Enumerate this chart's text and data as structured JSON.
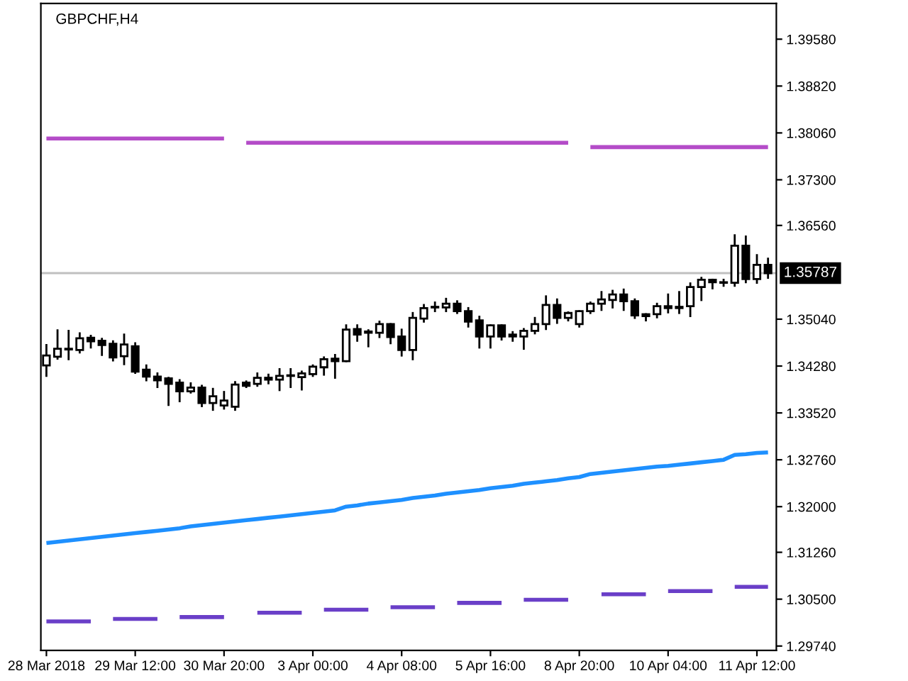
{
  "chart_data": {
    "type": "candlestick",
    "title": "GBPCHF,H4",
    "categories": [
      "28 Mar 2018",
      null,
      null,
      null,
      null,
      null,
      null,
      null,
      "29 Mar 12:00",
      null,
      null,
      null,
      null,
      null,
      null,
      null,
      "30 Mar 20:00",
      null,
      null,
      null,
      null,
      null,
      null,
      null,
      "3 Apr 00:00",
      null,
      null,
      null,
      null,
      null,
      null,
      null,
      "4 Apr 08:00",
      null,
      null,
      null,
      null,
      null,
      null,
      null,
      "5 Apr 16:00",
      null,
      null,
      null,
      null,
      null,
      null,
      null,
      "8 Apr 20:00",
      null,
      null,
      null,
      null,
      null,
      null,
      null,
      "10 Apr 04:00",
      null,
      null,
      null,
      null,
      null,
      null,
      null,
      "11 Apr 12:00",
      null
    ],
    "ohlc": [
      [
        1.3429,
        1.3462,
        1.3412,
        1.3445
      ],
      [
        1.3443,
        1.3486,
        1.344,
        1.3456
      ],
      [
        1.3455,
        1.3485,
        1.3439,
        1.3456
      ],
      [
        1.3454,
        1.3481,
        1.345,
        1.3473
      ],
      [
        1.3474,
        1.3477,
        1.3458,
        1.3468
      ],
      [
        1.3469,
        1.3472,
        1.3446,
        1.3462
      ],
      [
        1.3464,
        1.3468,
        1.3437,
        1.3442
      ],
      [
        1.3444,
        1.3479,
        1.3431,
        1.3463
      ],
      [
        1.346,
        1.3465,
        1.3417,
        1.3419
      ],
      [
        1.3422,
        1.3429,
        1.3405,
        1.3411
      ],
      [
        1.3411,
        1.3416,
        1.3394,
        1.3405
      ],
      [
        1.3408,
        1.3409,
        1.3365,
        1.3399
      ],
      [
        1.3401,
        1.3405,
        1.3371,
        1.3387
      ],
      [
        1.3387,
        1.34,
        1.3385,
        1.3393
      ],
      [
        1.3393,
        1.3396,
        1.3363,
        1.3368
      ],
      [
        1.3368,
        1.3391,
        1.3357,
        1.3379
      ],
      [
        1.3364,
        1.3386,
        1.3359,
        1.3372
      ],
      [
        1.3362,
        1.3402,
        1.3357,
        1.3398
      ],
      [
        1.3401,
        1.3403,
        1.3394,
        1.3396
      ],
      [
        1.3399,
        1.3416,
        1.3396,
        1.3409
      ],
      [
        1.3409,
        1.3414,
        1.34,
        1.3406
      ],
      [
        1.3406,
        1.3423,
        1.3389,
        1.3412
      ],
      [
        1.3412,
        1.3423,
        1.3394,
        1.3413
      ],
      [
        1.341,
        1.3419,
        1.339,
        1.3416
      ],
      [
        1.3415,
        1.3429,
        1.3412,
        1.3427
      ],
      [
        1.3426,
        1.3442,
        1.3414,
        1.3439
      ],
      [
        1.344,
        1.3446,
        1.3409,
        1.3436
      ],
      [
        1.3436,
        1.3494,
        1.3436,
        1.3487
      ],
      [
        1.3488,
        1.3494,
        1.3469,
        1.3479
      ],
      [
        1.3484,
        1.3486,
        1.346,
        1.3482
      ],
      [
        1.3482,
        1.35,
        1.3475,
        1.3496
      ],
      [
        1.3496,
        1.3496,
        1.3465,
        1.3475
      ],
      [
        1.3476,
        1.3487,
        1.3445,
        1.3454
      ],
      [
        1.3454,
        1.3514,
        1.3439,
        1.3506
      ],
      [
        1.3505,
        1.3527,
        1.35,
        1.3522
      ],
      [
        1.3523,
        1.3531,
        1.3517,
        1.3524
      ],
      [
        1.3523,
        1.3537,
        1.3517,
        1.3529
      ],
      [
        1.3529,
        1.3533,
        1.3514,
        1.3517
      ],
      [
        1.3517,
        1.3522,
        1.3492,
        1.35
      ],
      [
        1.3502,
        1.3508,
        1.3458,
        1.3476
      ],
      [
        1.3476,
        1.3494,
        1.3458,
        1.3494
      ],
      [
        1.3494,
        1.3494,
        1.3471,
        1.3476
      ],
      [
        1.3479,
        1.3483,
        1.3469,
        1.3476
      ],
      [
        1.3476,
        1.3488,
        1.3456,
        1.3485
      ],
      [
        1.3485,
        1.3506,
        1.3481,
        1.3496
      ],
      [
        1.3496,
        1.3541,
        1.3488,
        1.3527
      ],
      [
        1.3527,
        1.3536,
        1.3498,
        1.3506
      ],
      [
        1.3506,
        1.3515,
        1.3502,
        1.3514
      ],
      [
        1.3496,
        1.3517,
        1.3492,
        1.3517
      ],
      [
        1.3517,
        1.3531,
        1.3514,
        1.3529
      ],
      [
        1.3529,
        1.3548,
        1.3519,
        1.3536
      ],
      [
        1.3535,
        1.355,
        1.3523,
        1.3544
      ],
      [
        1.3544,
        1.3552,
        1.3519,
        1.3533
      ],
      [
        1.3533,
        1.3536,
        1.3506,
        1.351
      ],
      [
        1.3512,
        1.3512,
        1.3502,
        1.3509
      ],
      [
        1.3512,
        1.3529,
        1.3507,
        1.3525
      ],
      [
        1.3525,
        1.3544,
        1.3515,
        1.3522
      ],
      [
        1.3524,
        1.3548,
        1.3514,
        1.3522
      ],
      [
        1.3525,
        1.3562,
        1.3509,
        1.3556
      ],
      [
        1.3556,
        1.3571,
        1.3535,
        1.3568
      ],
      [
        1.3568,
        1.3568,
        1.3554,
        1.3564
      ],
      [
        1.3563,
        1.3568,
        1.3558,
        1.3564
      ],
      [
        1.3563,
        1.364,
        1.3558,
        1.3623
      ],
      [
        1.3623,
        1.3638,
        1.3564,
        1.3569
      ],
      [
        1.3569,
        1.3608,
        1.3563,
        1.3592
      ],
      [
        1.3592,
        1.3602,
        1.3571,
        1.35787
      ]
    ],
    "series": [
      {
        "type": "line",
        "color": "#b44cc8",
        "values": [
          1.3797,
          1.3797,
          1.3797,
          1.3797,
          1.3797,
          1.3797,
          1.3797,
          1.3797,
          1.3797,
          1.3797,
          1.3797,
          1.3797,
          1.3797,
          1.3797,
          1.3797,
          1.3797,
          1.3797,
          null,
          1.379,
          1.379,
          1.379,
          1.379,
          1.379,
          1.379,
          1.379,
          1.379,
          1.379,
          1.379,
          1.379,
          1.379,
          1.379,
          1.379,
          1.379,
          1.379,
          1.379,
          1.379,
          1.379,
          1.379,
          1.379,
          1.379,
          1.379,
          1.379,
          1.379,
          1.379,
          1.379,
          1.379,
          1.379,
          1.379,
          null,
          1.3783,
          1.3783,
          1.3783,
          1.3783,
          1.3783,
          1.3783,
          1.3783,
          1.3783,
          1.3783,
          1.3783,
          1.3783,
          1.3783,
          1.3783,
          1.3783,
          1.3783,
          1.3783,
          1.3783
        ]
      },
      {
        "type": "line",
        "color": "#1e90ff",
        "values": [
          1.3141,
          1.3143,
          1.3145,
          1.3147,
          1.3149,
          1.3151,
          1.3153,
          1.3155,
          1.3157,
          1.3159,
          1.3161,
          1.3163,
          1.3165,
          1.3168,
          1.317,
          1.3172,
          1.3174,
          1.3176,
          1.3178,
          1.318,
          1.3182,
          1.3184,
          1.3186,
          1.3188,
          1.319,
          1.3192,
          1.3194,
          1.32,
          1.3202,
          1.3205,
          1.3207,
          1.3209,
          1.3211,
          1.3214,
          1.3216,
          1.3218,
          1.3221,
          1.3223,
          1.3225,
          1.3227,
          1.323,
          1.3232,
          1.3234,
          1.3237,
          1.3239,
          1.3241,
          1.3243,
          1.3246,
          1.3248,
          1.3253,
          1.3255,
          1.3257,
          1.3259,
          1.3261,
          1.3263,
          1.3265,
          1.3266,
          1.3268,
          1.327,
          1.3272,
          1.3274,
          1.3276,
          1.3284,
          1.3285,
          1.3287,
          1.3288
        ]
      },
      {
        "type": "line",
        "color": "#6a3fc8",
        "values": [
          1.3014,
          1.3014,
          1.3014,
          1.3014,
          1.3014,
          null,
          1.3018,
          1.3018,
          1.3018,
          1.3018,
          1.3018,
          null,
          1.3021,
          1.3021,
          1.3021,
          1.3021,
          1.3021,
          null,
          null,
          1.3028,
          1.3028,
          1.3028,
          1.3028,
          1.3028,
          null,
          1.3033,
          1.3033,
          1.3033,
          1.3033,
          1.3033,
          null,
          1.3037,
          1.3037,
          1.3037,
          1.3037,
          1.3037,
          null,
          1.3044,
          1.3044,
          1.3044,
          1.3044,
          1.3044,
          null,
          1.3049,
          1.3049,
          1.3049,
          1.3049,
          1.3049,
          null,
          null,
          1.3058,
          1.3058,
          1.3058,
          1.3058,
          1.3058,
          null,
          1.3063,
          1.3063,
          1.3063,
          1.3063,
          1.3063,
          null,
          1.307,
          1.307,
          1.307,
          1.307
        ]
      }
    ],
    "ref_lines": [
      {
        "axis": "y",
        "value": 1.35787,
        "label": "1.35787",
        "color": "#c0c0c0"
      }
    ],
    "ylim": [
      1.2967,
      1.4016
    ],
    "yticks": [
      {
        "value": 1.2974,
        "label": "1.29740"
      },
      {
        "value": 1.305,
        "label": "1.30500"
      },
      {
        "value": 1.3126,
        "label": "1.31260"
      },
      {
        "value": 1.32,
        "label": "1.32000"
      },
      {
        "value": 1.3276,
        "label": "1.32760"
      },
      {
        "value": 1.3352,
        "label": "1.33520"
      },
      {
        "value": 1.3428,
        "label": "1.34280"
      },
      {
        "value": 1.3504,
        "label": "1.35040"
      },
      {
        "value": 1.3656,
        "label": "1.36560"
      },
      {
        "value": 1.373,
        "label": "1.37300"
      },
      {
        "value": 1.3806,
        "label": "1.38060"
      },
      {
        "value": 1.3882,
        "label": "1.38820"
      },
      {
        "value": 1.3958,
        "label": "1.39580"
      }
    ],
    "grid": false,
    "legend": false
  }
}
